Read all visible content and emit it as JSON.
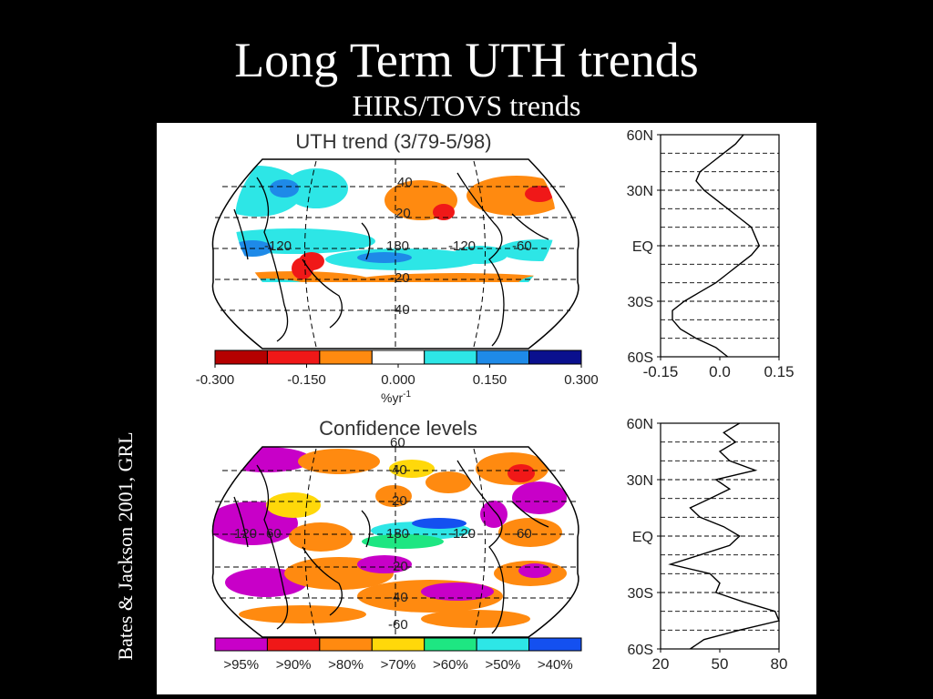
{
  "slide": {
    "title": "Long Term UTH trends",
    "subtitle": "HIRS/TOVS trends",
    "citation": "Bates & Jackson 2001, GRL"
  },
  "colors": {
    "background": "#000000",
    "text": "#ffffff",
    "panel": "#ffffff"
  },
  "chart_data": [
    {
      "id": "uth-trend-map",
      "type": "heatmap",
      "title": "UTH trend (3/79-5/98)",
      "map_labels": [
        "40",
        "20",
        "-120",
        "-20",
        "-40",
        "180",
        "-120",
        "-60"
      ],
      "colorbar": {
        "colors": [
          "#b50000",
          "#f01818",
          "#ff8a10",
          "#ffffff",
          "#2de6e6",
          "#1e8ae8",
          "#0a108e"
        ],
        "tick_labels": [
          "-0.300",
          "-0.150",
          "0.000",
          "0.150",
          "0.300"
        ],
        "ticks": [
          -0.3,
          -0.15,
          0.0,
          0.15,
          0.3
        ],
        "unit_label": "%yr",
        "unit_superscript": "-1"
      }
    },
    {
      "id": "uth-trend-zonal",
      "type": "line",
      "ylabels": [
        "60N",
        "30N",
        "EQ",
        "30S",
        "60S"
      ],
      "ylim": [
        -60,
        60
      ],
      "xlim": [
        -0.15,
        0.15
      ],
      "xtick_labels": [
        "-0.15",
        "0.0",
        "0.15"
      ],
      "xticks": [
        -0.15,
        0.0,
        0.15
      ],
      "series": [
        {
          "lat": [
            60,
            55,
            50,
            45,
            40,
            35,
            30,
            25,
            20,
            15,
            10,
            5,
            0,
            -5,
            -10,
            -15,
            -20,
            -25,
            -30,
            -35,
            -40,
            -45,
            -50,
            -55,
            -60
          ],
          "values": [
            0.06,
            0.04,
            0.01,
            -0.02,
            -0.05,
            -0.06,
            -0.04,
            -0.01,
            0.02,
            0.05,
            0.08,
            0.09,
            0.1,
            0.08,
            0.05,
            0.02,
            -0.01,
            -0.05,
            -0.09,
            -0.12,
            -0.12,
            -0.1,
            -0.06,
            -0.01,
            0.02
          ]
        }
      ]
    },
    {
      "id": "confidence-map",
      "type": "heatmap",
      "title": "Confidence levels",
      "map_labels": [
        "60",
        "40",
        "20",
        "-120",
        "-20",
        "-40",
        "-60",
        "60",
        "180",
        "-120",
        "-60"
      ],
      "legend": {
        "colors": [
          "#c800c8",
          "#f01818",
          "#ff8a10",
          "#ffd80a",
          "#1ee682",
          "#2de6e6",
          "#1450f0"
        ],
        "labels": [
          ">95%",
          ">90%",
          ">80%",
          ">70%",
          ">60%",
          ">50%",
          ">40%"
        ]
      }
    },
    {
      "id": "confidence-zonal",
      "type": "line",
      "ylabels": [
        "60N",
        "30N",
        "EQ",
        "30S",
        "60S"
      ],
      "ylim": [
        -60,
        60
      ],
      "xlim": [
        20,
        80
      ],
      "xtick_labels": [
        "20",
        "50",
        "80"
      ],
      "xticks": [
        20,
        50,
        80
      ],
      "series": [
        {
          "lat": [
            60,
            55,
            50,
            45,
            40,
            35,
            30,
            25,
            20,
            15,
            10,
            5,
            0,
            -5,
            -10,
            -15,
            -20,
            -25,
            -30,
            -35,
            -40,
            -45,
            -50,
            -55,
            -60
          ],
          "values": [
            60,
            52,
            58,
            50,
            55,
            68,
            48,
            55,
            45,
            35,
            40,
            52,
            60,
            55,
            40,
            25,
            45,
            50,
            48,
            62,
            78,
            80,
            60,
            42,
            35
          ]
        }
      ]
    }
  ]
}
